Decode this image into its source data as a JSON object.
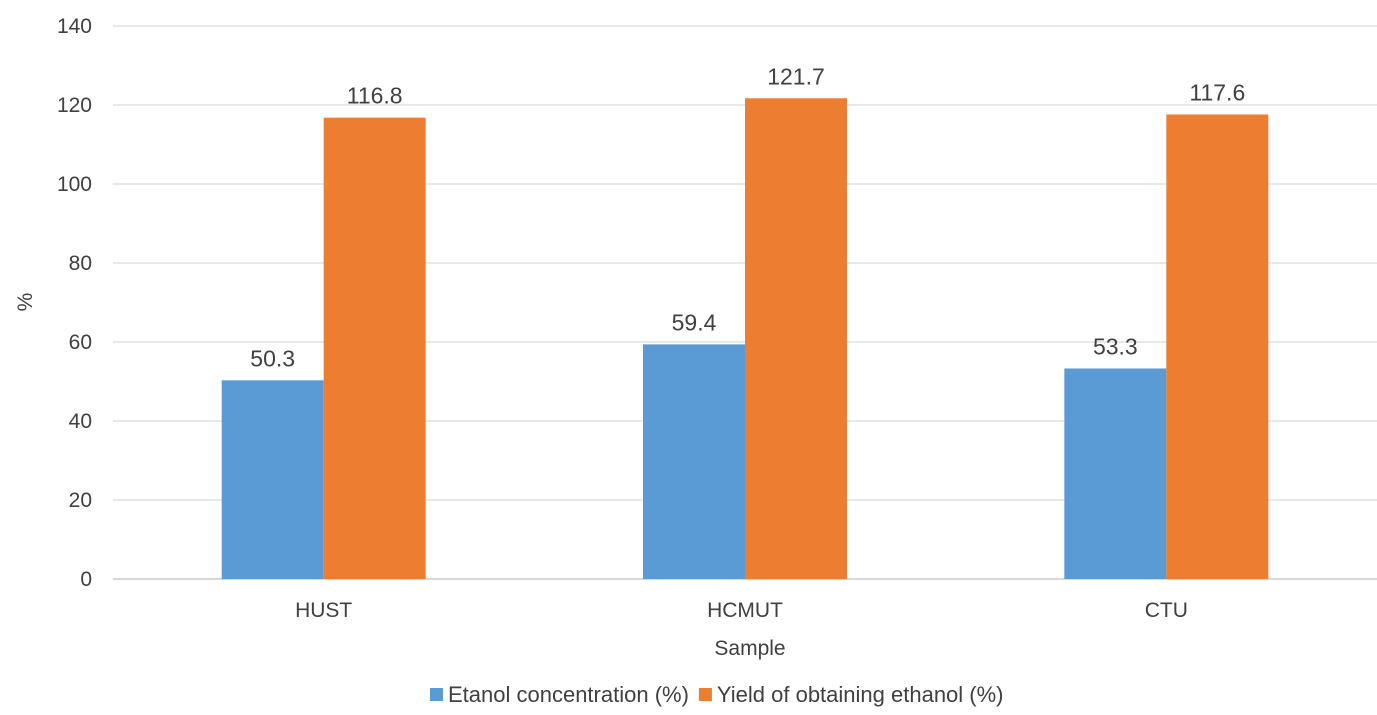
{
  "chart_data": {
    "type": "bar",
    "title": "",
    "xlabel": "Sample",
    "ylabel": "%",
    "categories": [
      "HUST",
      "HCMUT",
      "CTU"
    ],
    "series": [
      {
        "name": "Etanol concentration (%)",
        "color": "#5B9BD5",
        "values": [
          50.3,
          59.4,
          53.3
        ]
      },
      {
        "name": "Yield of obtaining ethanol (%)",
        "color": "#ED7D31",
        "values": [
          116.8,
          121.7,
          117.6
        ]
      }
    ],
    "ylim": [
      0,
      140
    ],
    "yticks": [
      0,
      20,
      40,
      60,
      80,
      100,
      120,
      140
    ],
    "grid": true,
    "legend_position": "bottom",
    "data_labels": true
  }
}
